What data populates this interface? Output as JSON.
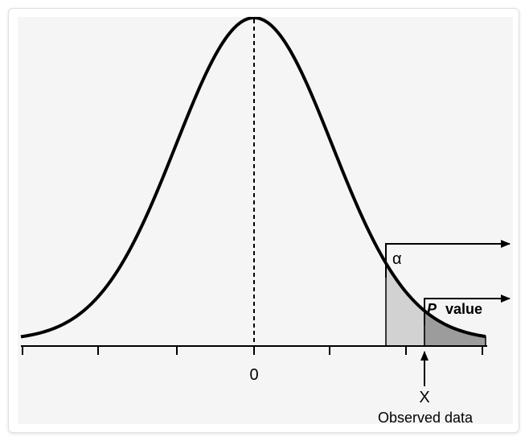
{
  "figure": {
    "labels": {
      "center_tick": "0",
      "alpha": "α",
      "p_value_italic": "P",
      "p_value_word": "value",
      "x_marker": "X",
      "observed": "Observed data"
    },
    "colors": {
      "background": "#f5f5f5",
      "curve": "#000000",
      "alpha_region": "#d2d2d2",
      "p_region": "#9c9c9c"
    }
  }
}
